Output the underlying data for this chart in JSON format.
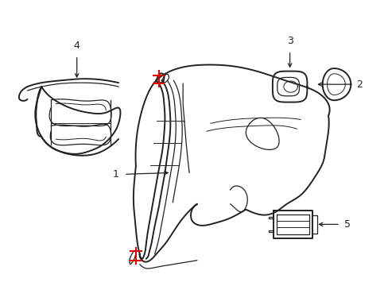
{
  "bg_color": "#ffffff",
  "line_color": "#222222",
  "red_color": "#dd0000",
  "figsize": [
    4.89,
    3.6
  ],
  "dpi": 100
}
